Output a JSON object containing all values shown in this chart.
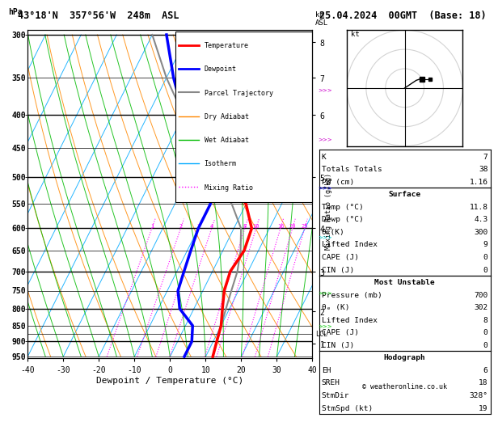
{
  "title_left": "43°18'N  357°56'W  248m  ASL",
  "title_right": "25.04.2024  00GMT  (Base: 18)",
  "xlabel": "Dewpoint / Temperature (°C)",
  "ylabel_left": "hPa",
  "temp_color": "#ff0000",
  "dewp_color": "#0000ff",
  "parcel_color": "#888888",
  "dry_adiabat_color": "#ff8800",
  "wet_adiabat_color": "#00bb00",
  "isotherm_color": "#00aaff",
  "mixing_ratio_color": "#ff00ff",
  "background_color": "#ffffff",
  "pressure_levels": [
    300,
    350,
    400,
    450,
    500,
    550,
    600,
    650,
    700,
    750,
    800,
    850,
    900,
    950
  ],
  "xlim": [
    -40,
    40
  ],
  "pmin": 300,
  "pmax": 950,
  "skew": 45,
  "temp_profile": {
    "pressure": [
      300,
      350,
      400,
      450,
      500,
      550,
      600,
      650,
      700,
      750,
      800,
      850,
      900,
      950
    ],
    "temperature": [
      -42,
      -35,
      -26,
      -17,
      -8,
      0,
      5,
      6,
      5,
      6,
      8,
      10,
      11,
      12
    ]
  },
  "dewp_profile": {
    "pressure": [
      300,
      350,
      400,
      450,
      500,
      550,
      600,
      650,
      700,
      750,
      800,
      850,
      900,
      950
    ],
    "dewpoint": [
      -46,
      -38,
      -30,
      -20,
      -14,
      -10,
      -10,
      -9,
      -8,
      -7,
      -4,
      2,
      4,
      4
    ]
  },
  "parcel_profile": {
    "pressure": [
      300,
      350,
      400,
      450,
      500,
      550,
      600,
      650,
      700,
      750,
      800,
      850,
      900,
      950
    ],
    "temperature": [
      -50,
      -40,
      -30,
      -21,
      -12,
      -4,
      2,
      5,
      7,
      8,
      9,
      10,
      11,
      12
    ]
  },
  "lcl_pressure": 875,
  "surface_temp": 11.8,
  "surface_dewp": 4.3,
  "theta_e_surface": 300,
  "lifted_index_surface": 9,
  "cape_surface": 0,
  "cin_surface": 0,
  "most_unstable_pressure": 700,
  "theta_e_unstable": 302,
  "lifted_index_unstable": 8,
  "cape_unstable": 0,
  "cin_unstable": 0,
  "k_index": 7,
  "totals_totals": 38,
  "pw_cm": 1.16,
  "hodograph_eh": 6,
  "hodograph_sreh": 18,
  "storm_dir": 328,
  "storm_spd_kt": 19,
  "mixing_ratio_vals": [
    0.001,
    0.002,
    0.003,
    0.004,
    0.008,
    0.01,
    0.016,
    0.02,
    0.025
  ],
  "mixing_ratio_labels": [
    "1",
    "2",
    "3",
    "4",
    "8",
    "10",
    "16",
    "20",
    "25"
  ],
  "km_ticks": [
    1,
    2,
    3,
    4,
    5,
    6,
    7,
    8
  ],
  "km_pressures": [
    907,
    808,
    700,
    600,
    500,
    400,
    350,
    308
  ],
  "legend_items": [
    [
      "Temperature",
      "#ff0000",
      "-",
      2.0
    ],
    [
      "Dewpoint",
      "#0000ff",
      "-",
      2.0
    ],
    [
      "Parcel Trajectory",
      "#888888",
      "-",
      1.5
    ],
    [
      "Dry Adiabat",
      "#ff8800",
      "-",
      1.0
    ],
    [
      "Wet Adiabat",
      "#00bb00",
      "-",
      1.0
    ],
    [
      "Isotherm",
      "#00aaff",
      "-",
      1.0
    ],
    [
      "Mixing Ratio",
      "#ff00ff",
      ":",
      1.0
    ]
  ]
}
